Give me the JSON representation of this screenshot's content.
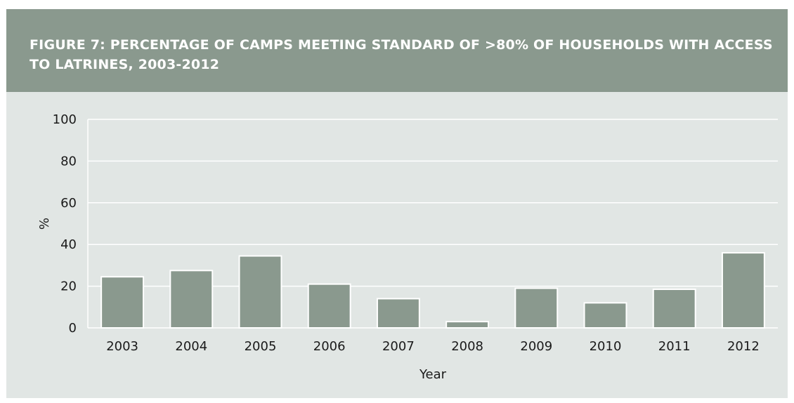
{
  "chart_data": {
    "type": "bar",
    "title": "FIGURE 7: PERCENTAGE OF CAMPS MEETING STANDARD OF >80% OF HOUSEHOLDS WITH ACCESS TO LATRINES, 2003-2012",
    "xlabel": "Year",
    "ylabel": "%",
    "categories": [
      "2003",
      "2004",
      "2005",
      "2006",
      "2007",
      "2008",
      "2009",
      "2010",
      "2011",
      "2012"
    ],
    "values": [
      24.5,
      27.5,
      34.5,
      21,
      14,
      3,
      19,
      12,
      18.5,
      36
    ],
    "ylim": [
      0,
      100
    ],
    "yticks": [
      "0",
      "20",
      "40",
      "60",
      "80",
      "100"
    ],
    "grid": true,
    "colors": {
      "bar": "#8a998e",
      "header": "#8a998e",
      "plot_background": "#e1e6e4",
      "gridline": "#ffffff"
    }
  }
}
